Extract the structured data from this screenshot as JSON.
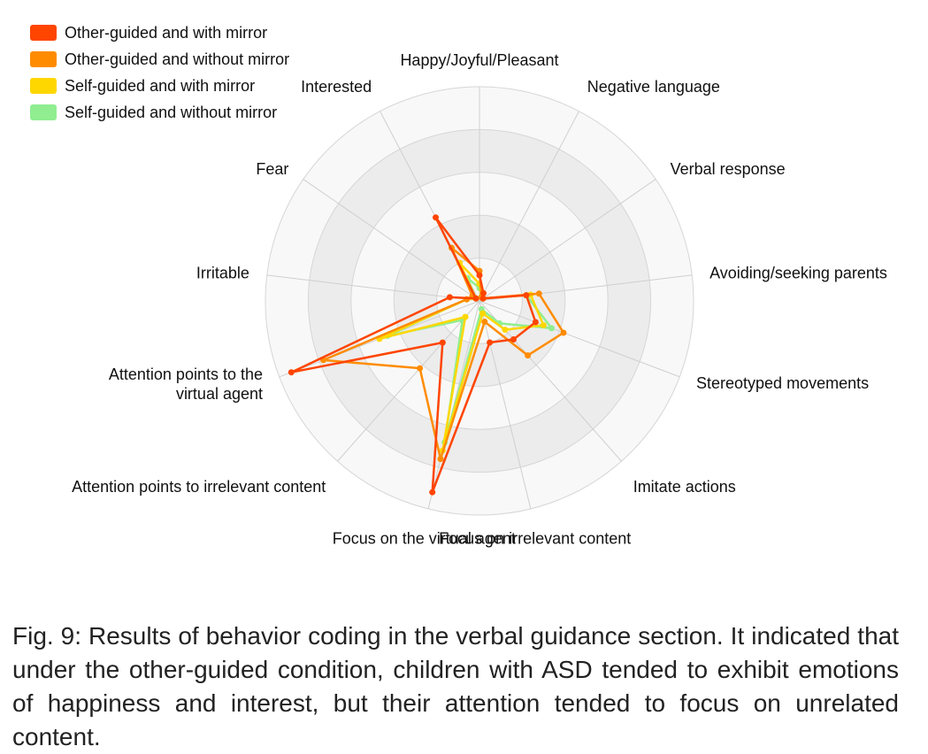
{
  "legend": [
    {
      "label": "Other-guided and with mirror",
      "color": "#ff4500"
    },
    {
      "label": "Other-guided and without mirror",
      "color": "#ff8c00"
    },
    {
      "label": "Self-guided and with mirror",
      "color": "#ffd700"
    },
    {
      "label": "Self-guided and without mirror",
      "color": "#90ee90"
    }
  ],
  "caption": "Fig. 9: Results of behavior coding in the verbal guidance section.  It indicated that under the other-guided condition, children with ASD tended to exhibit emotions of happiness and interest, but their attention tended to focus on unrelated content.",
  "chart_data": {
    "type": "radar",
    "title": "",
    "categories": [
      "Happy/Joyful/Pleasant",
      "Negative language",
      "Verbal response",
      "Avoiding/seeking parents",
      "Stereotyped movements",
      "Imitate actions",
      "Focus on irrelevant content",
      "Focus on the virtual agent",
      "Attention points to irrelevant content",
      "Attention points to the virtual agent",
      "Irritable",
      "Fear",
      "Interested"
    ],
    "rlim": [
      0,
      5
    ],
    "rings": 5,
    "grid": true,
    "legend_position": "top-left",
    "series": [
      {
        "name": "Other-guided and with mirror",
        "color": "#ff4500",
        "values": [
          0.6,
          0.2,
          0.1,
          1.1,
          1.4,
          1.2,
          1.0,
          4.6,
          1.3,
          4.7,
          0.7,
          0.1,
          2.2
        ]
      },
      {
        "name": "Other-guided and without mirror",
        "color": "#ff8c00",
        "values": [
          0.7,
          0.1,
          0.1,
          1.4,
          2.1,
          1.7,
          0.5,
          3.8,
          2.1,
          3.9,
          0.3,
          0.2,
          1.4
        ]
      },
      {
        "name": "Self-guided and with mirror",
        "color": "#ffd700",
        "values": [
          0.4,
          0.1,
          0.1,
          1.2,
          1.6,
          0.9,
          0.3,
          3.6,
          0.5,
          2.5,
          0.3,
          0.1,
          1.0
        ]
      },
      {
        "name": "Self-guided and without mirror",
        "color": "#90ee90",
        "values": [
          0.3,
          0.1,
          0.1,
          1.1,
          1.8,
          0.7,
          0.2,
          3.4,
          0.6,
          2.3,
          0.3,
          0.1,
          0.6
        ]
      }
    ]
  }
}
